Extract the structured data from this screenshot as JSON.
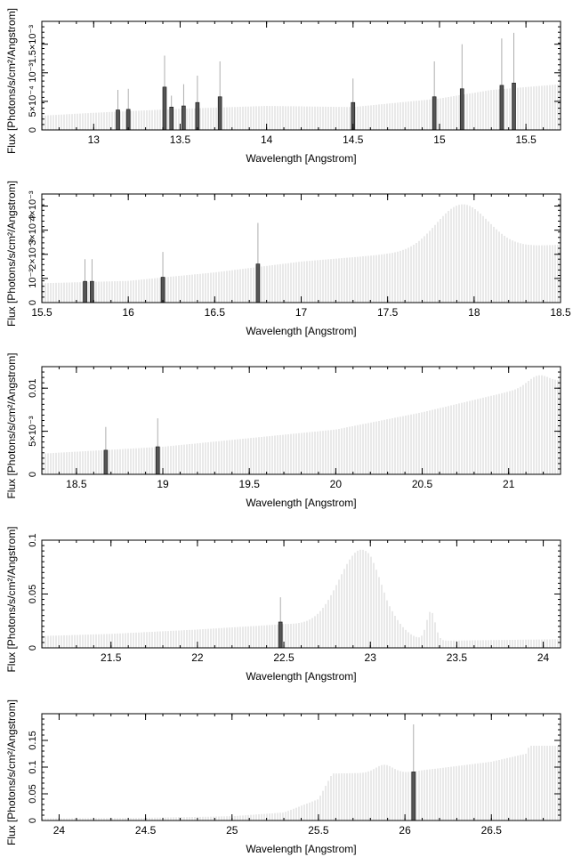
{
  "chart_data": [
    {
      "type": "line",
      "xlabel": "Wavelength [Angstrom]",
      "ylabel": "Flux [Photons/s/cm²/Angstrom]",
      "xlim": [
        12.7,
        15.7
      ],
      "ylim": [
        0,
        0.0019
      ],
      "xticks": [
        13,
        13.5,
        14,
        14.5,
        15,
        15.5
      ],
      "xtick_labels": [
        "13",
        "13.5",
        "14",
        "14.5",
        "15",
        "15.5"
      ],
      "yticks": [
        0.0005,
        0.001,
        0.0015
      ],
      "ytick_labels": [
        "5×10⁻⁴",
        "10⁻³",
        "1.5×10⁻³"
      ],
      "continuum": [
        [
          12.7,
          0.00025
        ],
        [
          13.0,
          0.0003
        ],
        [
          13.5,
          0.00037
        ],
        [
          14.0,
          0.00042
        ],
        [
          14.5,
          0.0004
        ],
        [
          15.0,
          0.00055
        ],
        [
          15.3,
          0.0007
        ],
        [
          15.7,
          0.0008
        ]
      ],
      "features": [],
      "lines": [
        {
          "x": 13.14,
          "y": 0.00035,
          "err": 0.0007
        },
        {
          "x": 13.2,
          "y": 0.00036,
          "err": 0.00072
        },
        {
          "x": 13.41,
          "y": 0.00075,
          "err": 0.0013
        },
        {
          "x": 13.45,
          "y": 0.0004,
          "err": 0.0006
        },
        {
          "x": 13.52,
          "y": 0.00042,
          "err": 0.0008
        },
        {
          "x": 13.6,
          "y": 0.00048,
          "err": 0.00095
        },
        {
          "x": 13.73,
          "y": 0.00058,
          "err": 0.0012
        },
        {
          "x": 14.5,
          "y": 0.00048,
          "err": 0.0009
        },
        {
          "x": 14.97,
          "y": 0.00058,
          "err": 0.0012
        },
        {
          "x": 15.13,
          "y": 0.00072,
          "err": 0.0015
        },
        {
          "x": 15.36,
          "y": 0.00078,
          "err": 0.0016
        },
        {
          "x": 15.43,
          "y": 0.00082,
          "err": 0.0017
        }
      ]
    },
    {
      "type": "line",
      "xlabel": "Wavelength [Angstrom]",
      "ylabel": "Flux [Photons/s/cm²/Angstrom]",
      "xlim": [
        15.5,
        18.5
      ],
      "ylim": [
        0,
        0.0045
      ],
      "xticks": [
        15.5,
        16,
        16.5,
        17,
        17.5,
        18,
        18.5
      ],
      "xtick_labels": [
        "15.5",
        "16",
        "16.5",
        "17",
        "17.5",
        "18",
        "18.5"
      ],
      "yticks": [
        0.001,
        0.002,
        0.003,
        0.004
      ],
      "ytick_labels": [
        "10⁻³",
        "2×10⁻³",
        "3×10⁻³",
        "4×10⁻³"
      ],
      "continuum": [
        [
          15.5,
          0.0008
        ],
        [
          16.0,
          0.0009
        ],
        [
          16.5,
          0.00125
        ],
        [
          17.0,
          0.0017
        ],
        [
          17.5,
          0.002
        ],
        [
          18.5,
          0.0024
        ]
      ],
      "features": [
        {
          "center": 17.93,
          "width": 0.15,
          "amp": 0.0019
        }
      ],
      "lines": [
        {
          "x": 15.75,
          "y": 0.00088,
          "err": 0.0018
        },
        {
          "x": 15.79,
          "y": 0.00088,
          "err": 0.0018
        },
        {
          "x": 16.2,
          "y": 0.00105,
          "err": 0.0021
        },
        {
          "x": 16.75,
          "y": 0.0016,
          "err": 0.0033
        }
      ]
    },
    {
      "type": "line",
      "xlabel": "Wavelength [Angstrom]",
      "ylabel": "Flux [Photons/s/cm²/Angstrom]",
      "xlim": [
        18.3,
        21.3
      ],
      "ylim": [
        0,
        0.0125
      ],
      "xticks": [
        18.5,
        19,
        19.5,
        20,
        20.5,
        21
      ],
      "xtick_labels": [
        "18.5",
        "19",
        "19.5",
        "20",
        "20.5",
        "21"
      ],
      "yticks": [
        0.005,
        0.01
      ],
      "ytick_labels": [
        "5×10⁻³",
        "0.01"
      ],
      "continuum": [
        [
          18.3,
          0.0024
        ],
        [
          19.0,
          0.0032
        ],
        [
          19.5,
          0.0042
        ],
        [
          20.0,
          0.0052
        ],
        [
          20.5,
          0.0072
        ],
        [
          21.0,
          0.0096
        ],
        [
          21.3,
          0.0108
        ]
      ],
      "features": [
        {
          "center": 21.17,
          "width": 0.06,
          "amp": 0.0012
        }
      ],
      "lines": [
        {
          "x": 18.67,
          "y": 0.0028,
          "err": 0.0055
        },
        {
          "x": 18.97,
          "y": 0.0032,
          "err": 0.0065
        }
      ]
    },
    {
      "type": "line",
      "xlabel": "Wavelength [Angstrom]",
      "ylabel": "Flux [Photons/s/cm²/Angstrom]",
      "xlim": [
        21.1,
        24.1
      ],
      "ylim": [
        0,
        0.1
      ],
      "xticks": [
        21.5,
        22,
        22.5,
        23,
        23.5,
        24
      ],
      "xtick_labels": [
        "21.5",
        "22",
        "22.5",
        "23",
        "23.5",
        "24"
      ],
      "yticks": [
        0.05,
        0.1
      ],
      "ytick_labels": [
        "0.05",
        "0.1"
      ],
      "continuum": [
        [
          21.1,
          0.011
        ],
        [
          21.5,
          0.013
        ],
        [
          22.0,
          0.017
        ],
        [
          22.5,
          0.022
        ],
        [
          23.0,
          0.02
        ],
        [
          23.1,
          0.006
        ],
        [
          24.1,
          0.008
        ]
      ],
      "features": [
        {
          "center": 22.95,
          "width": 0.13,
          "amp": 0.071
        },
        {
          "center": 23.35,
          "width": 0.025,
          "amp": 0.027
        }
      ],
      "lines": [
        {
          "x": 22.48,
          "y": 0.024,
          "err": 0.047
        }
      ]
    },
    {
      "type": "line",
      "xlabel": "Wavelength [Angstrom]",
      "ylabel": "Flux [Photons/s/cm²/Angstrom]",
      "xlim": [
        23.9,
        26.9
      ],
      "ylim": [
        0,
        0.2
      ],
      "xticks": [
        24,
        24.5,
        25,
        25.5,
        26,
        26.5
      ],
      "xtick_labels": [
        "24",
        "24.5",
        "25",
        "25.5",
        "26",
        "26.5"
      ],
      "yticks": [
        0.05,
        0.1,
        0.15
      ],
      "ytick_labels": [
        "0.05",
        "0.1",
        "0.15"
      ],
      "continuum": [
        [
          23.9,
          0.004
        ],
        [
          24.5,
          0.005
        ],
        [
          25.0,
          0.008
        ],
        [
          25.3,
          0.015
        ],
        [
          25.5,
          0.04
        ],
        [
          25.58,
          0.088
        ],
        [
          26.0,
          0.09
        ],
        [
          26.5,
          0.11
        ],
        [
          26.7,
          0.125
        ],
        [
          26.72,
          0.14
        ],
        [
          26.9,
          0.14
        ]
      ],
      "features": [
        {
          "center": 25.88,
          "width": 0.05,
          "amp": 0.015
        }
      ],
      "lines": [
        {
          "x": 26.05,
          "y": 0.091,
          "err": 0.18
        }
      ]
    }
  ]
}
